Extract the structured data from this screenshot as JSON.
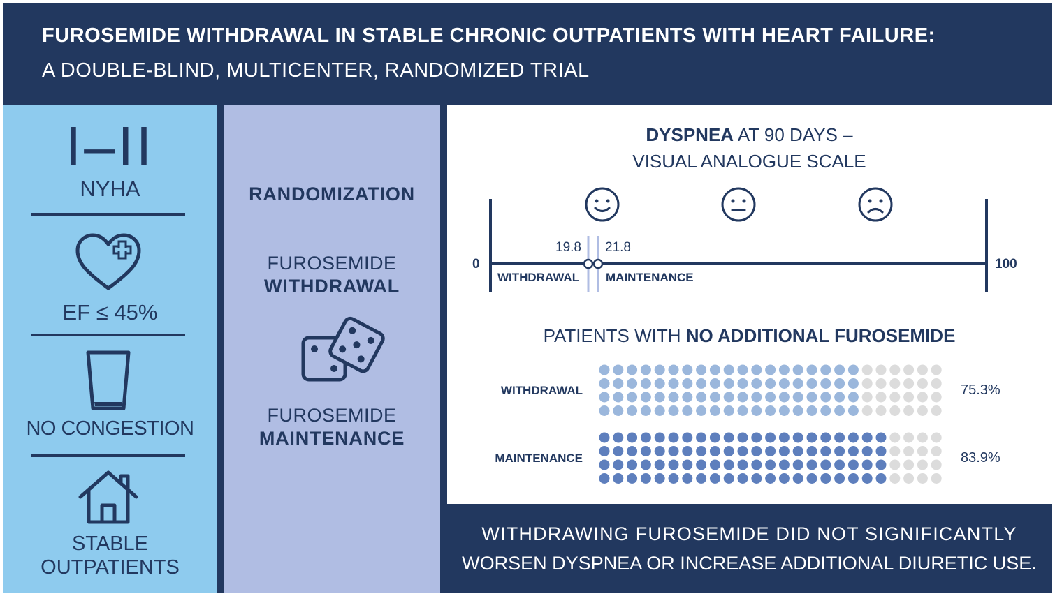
{
  "header": {
    "title_bold": "FUROSEMIDE WITHDRAWAL IN STABLE CHRONIC OUTPATIENTS WITH HEART FAILURE:",
    "title_sub": "A DOUBLE-BLIND, MULTICENTER, RANDOMIZED TRIAL"
  },
  "criteria": {
    "nyha_class": "I–II",
    "nyha_label": "NYHA",
    "ef_label": "EF ≤ 45%",
    "congestion_label": "NO CONGESTION",
    "stable_line1": "STABLE",
    "stable_line2": "OUTPATIENTS"
  },
  "randomization": {
    "title": "RANDOMIZATION",
    "arm1_line1": "FUROSEMIDE",
    "arm1_line2": "WITHDRAWAL",
    "arm2_line1": "FUROSEMIDE",
    "arm2_line2": "MAINTENANCE"
  },
  "dyspnea": {
    "title_bold": "DYSPNEA",
    "title_rest": " AT 90 DAYS –",
    "title_line2": "VISUAL ANALOGUE SCALE",
    "scale_min": "0",
    "scale_max": "100",
    "withdrawal_value": "19.8",
    "maintenance_value": "21.8",
    "withdrawal_label": "WITHDRAWAL",
    "maintenance_label": "MAINTENANCE",
    "faces": [
      "happy-face-icon",
      "neutral-face-icon",
      "sad-face-icon"
    ]
  },
  "additional": {
    "title_plain": "PATIENTS WITH ",
    "title_bold": "NO ADDITIONAL FUROSEMIDE",
    "rows": [
      {
        "label": "WITHDRAWAL",
        "percent": "75.3%",
        "filled_fraction": 0.753,
        "color": "#9bb7dc"
      },
      {
        "label": "MAINTENANCE",
        "percent": "83.9%",
        "filled_fraction": 0.839,
        "color": "#5e7fbd"
      }
    ],
    "empty_color": "#dcdcdc"
  },
  "conclusion": {
    "line1": "WITHDRAWING FUROSEMIDE DID NOT SIGNIFICANTLY",
    "line2": "WORSEN DYSPNEA OR INCREASE ADDITIONAL DIURETIC USE."
  },
  "colors": {
    "navy": "#22385f",
    "light_blue": "#8ecbee",
    "lavender": "#b0bde3"
  }
}
